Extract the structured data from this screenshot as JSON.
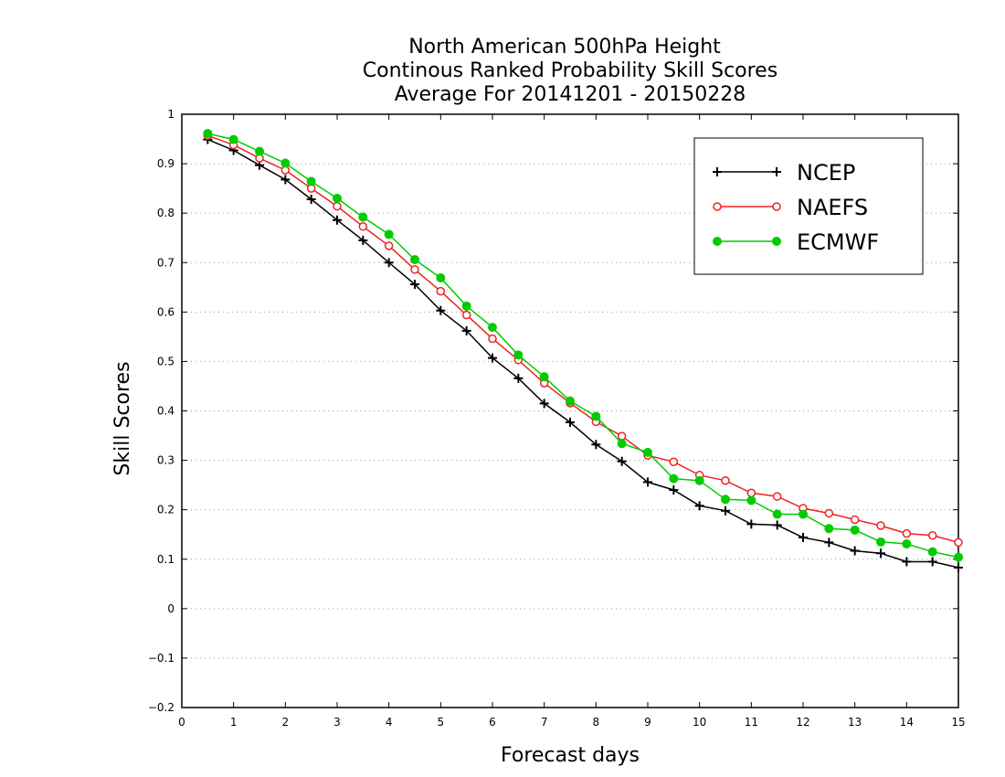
{
  "chart_data": {
    "type": "line",
    "title": [
      "North American 500hPa Height",
      "Continous Ranked Probability Skill Scores",
      "Average For 20141201 - 20150228"
    ],
    "xlabel": "Forecast days",
    "ylabel": "Skill Scores",
    "xlim": [
      0,
      15
    ],
    "ylim": [
      -0.2,
      1
    ],
    "xticks": [
      0,
      1,
      2,
      3,
      4,
      5,
      6,
      7,
      8,
      9,
      10,
      11,
      12,
      13,
      14,
      15
    ],
    "yticks": [
      -0.2,
      -0.1,
      0,
      0.1,
      0.2,
      0.3,
      0.4,
      0.5,
      0.6,
      0.7,
      0.8,
      0.9,
      1
    ],
    "grid": "horizontal dotted",
    "legend_position": "top-right",
    "x": [
      0.5,
      1,
      1.5,
      2,
      2.5,
      3,
      3.5,
      4,
      4.5,
      5,
      5.5,
      6,
      6.5,
      7,
      7.5,
      8,
      8.5,
      9,
      9.5,
      10,
      10.5,
      11,
      11.5,
      12,
      12.5,
      13,
      13.5,
      14,
      14.5,
      15
    ],
    "series": [
      {
        "name": "NCEP",
        "color": "#000000",
        "marker": "plus",
        "values": [
          0.949,
          0.927,
          0.897,
          0.868,
          0.828,
          0.786,
          0.745,
          0.7,
          0.656,
          0.603,
          0.562,
          0.507,
          0.466,
          0.415,
          0.377,
          0.332,
          0.298,
          0.256,
          0.24,
          0.208,
          0.198,
          0.171,
          0.169,
          0.144,
          0.134,
          0.117,
          0.112,
          0.095,
          0.095,
          0.083
        ]
      },
      {
        "name": "NAEFS",
        "color": "#ee2222",
        "marker": "open-circle",
        "values": [
          0.957,
          0.938,
          0.911,
          0.887,
          0.85,
          0.814,
          0.773,
          0.734,
          0.686,
          0.642,
          0.594,
          0.546,
          0.503,
          0.456,
          0.416,
          0.378,
          0.349,
          0.31,
          0.297,
          0.27,
          0.259,
          0.234,
          0.227,
          0.203,
          0.193,
          0.18,
          0.168,
          0.152,
          0.148,
          0.134
        ]
      },
      {
        "name": "ECMWF",
        "color": "#00cc00",
        "marker": "filled-circle",
        "values": [
          0.961,
          0.949,
          0.925,
          0.901,
          0.864,
          0.83,
          0.792,
          0.757,
          0.706,
          0.669,
          0.612,
          0.569,
          0.513,
          0.469,
          0.42,
          0.389,
          0.334,
          0.316,
          0.263,
          0.259,
          0.221,
          0.219,
          0.191,
          0.191,
          0.162,
          0.159,
          0.135,
          0.131,
          0.115,
          0.104
        ]
      }
    ]
  }
}
